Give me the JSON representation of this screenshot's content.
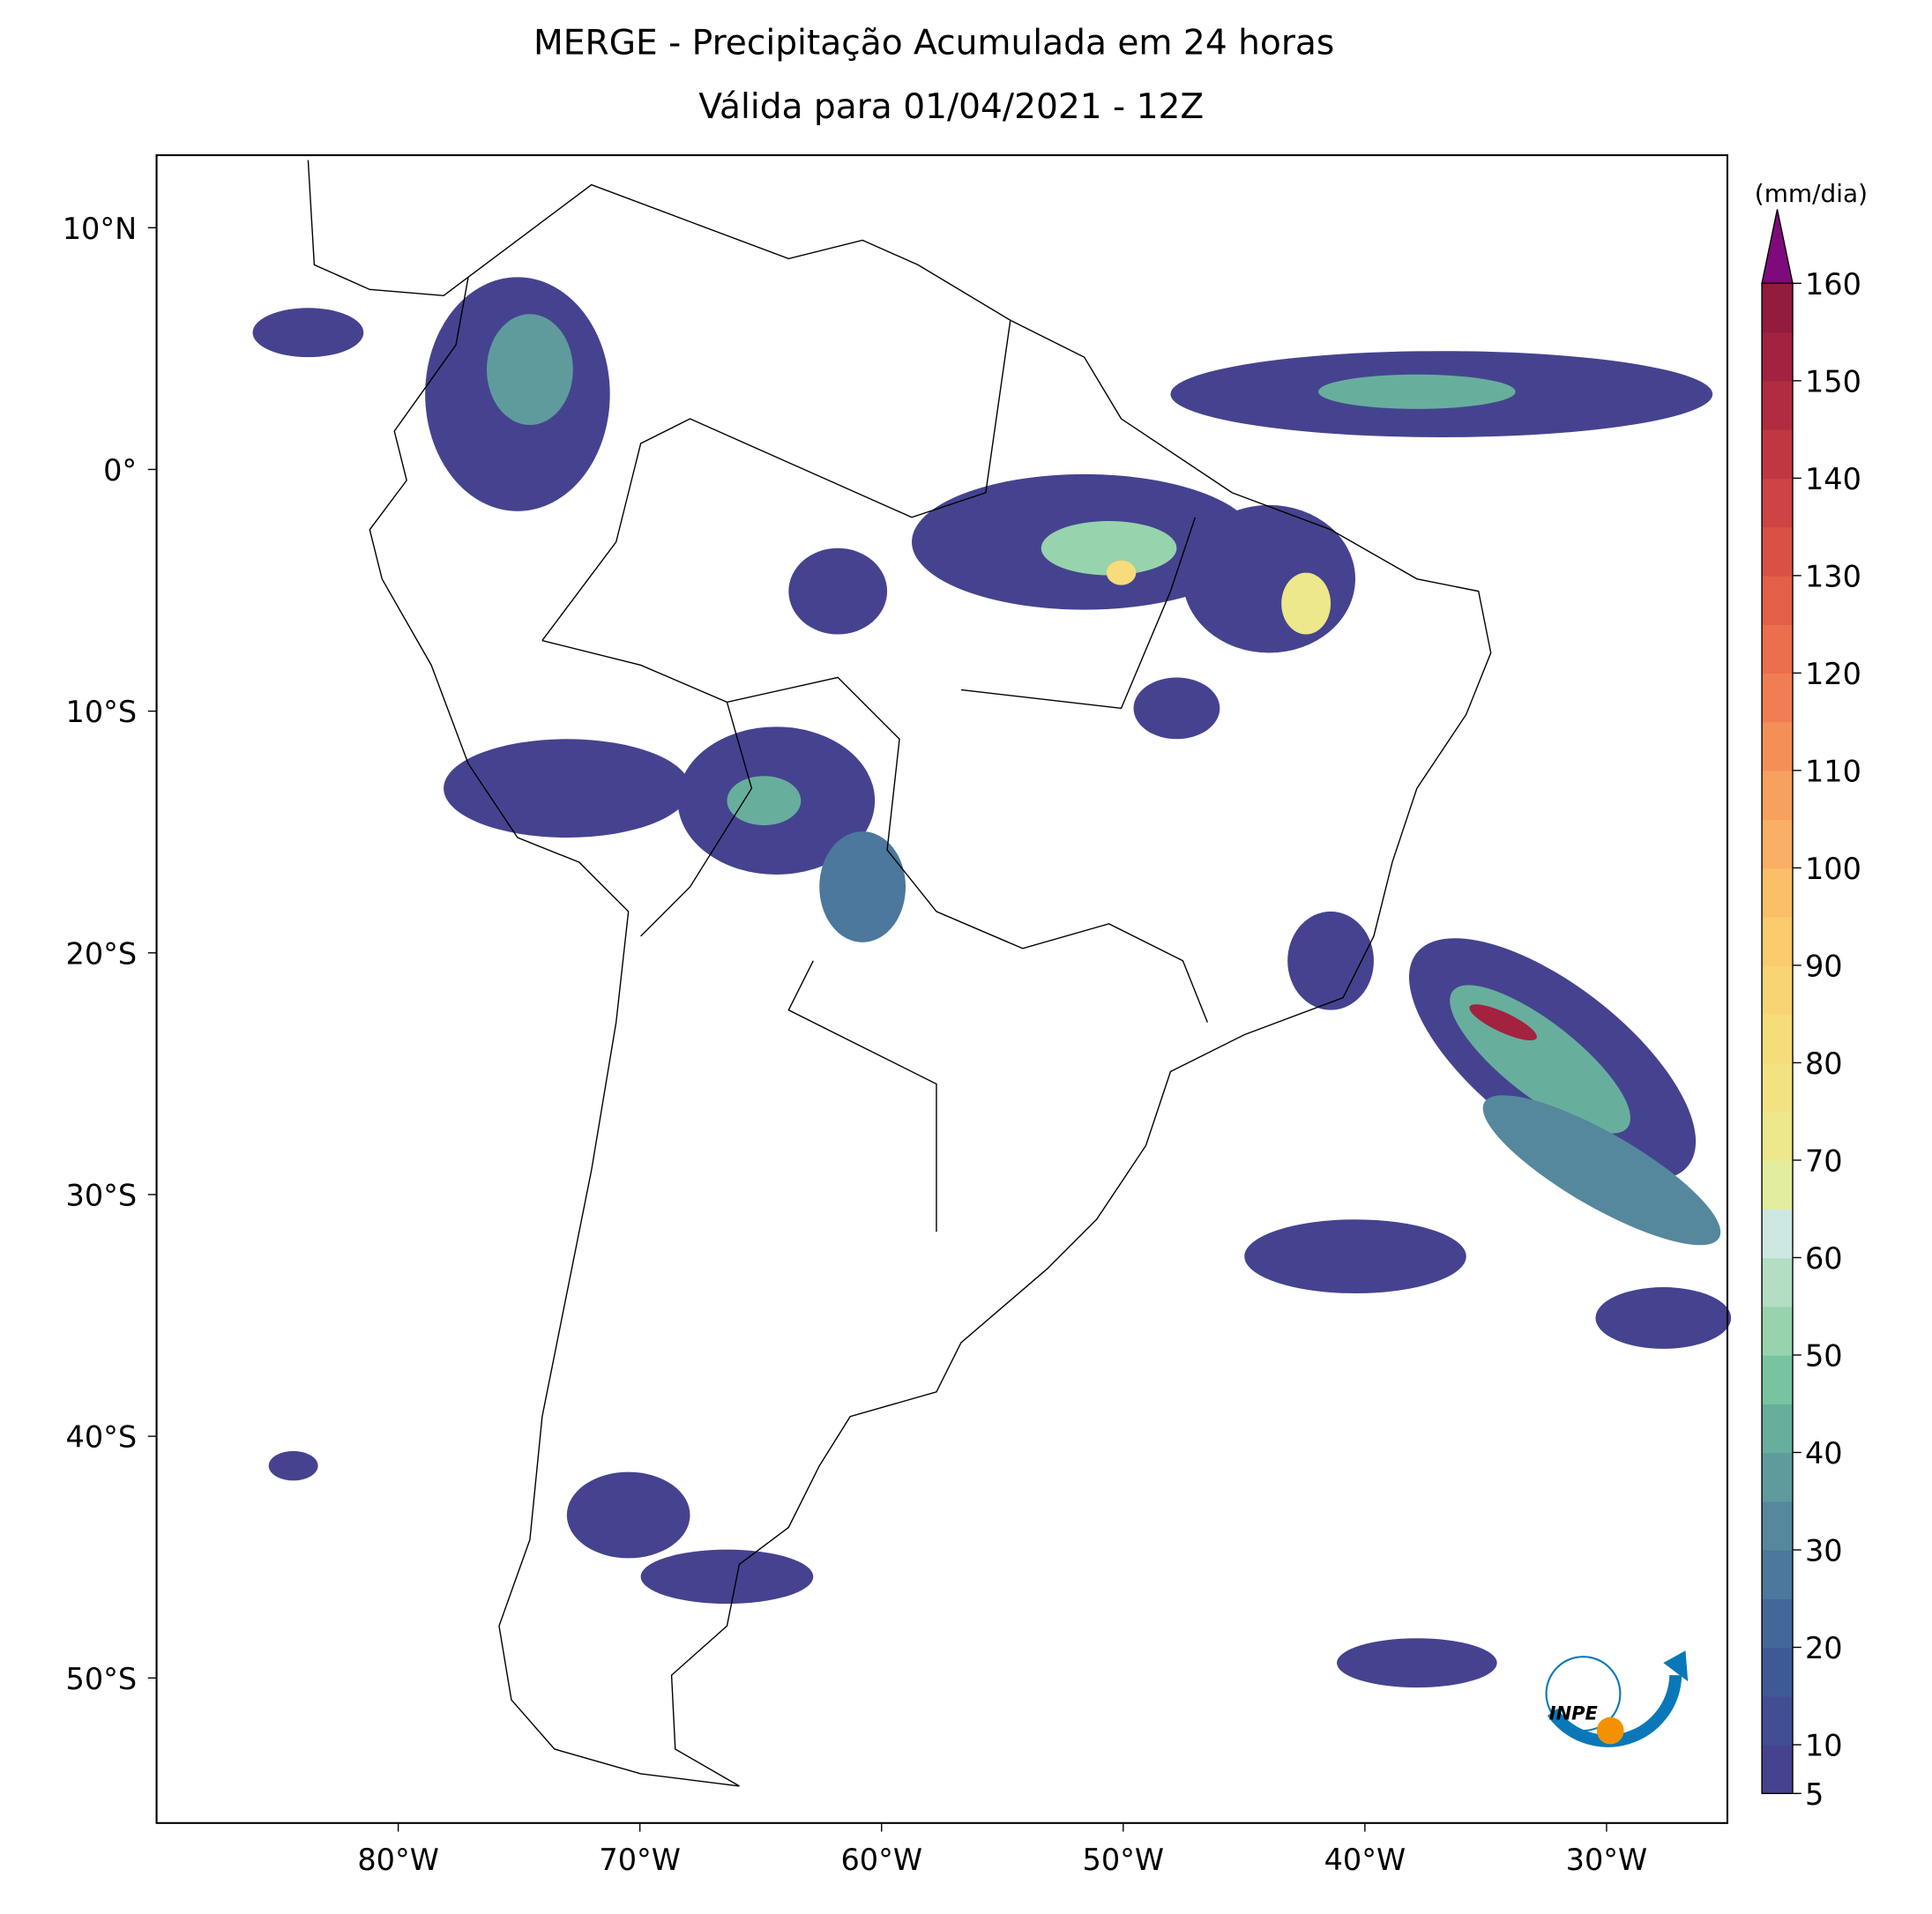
{
  "title": [
    "MERGE - Precipitação Acumulada em 24 horas",
    "Válida para 01/04/2021 - 12Z"
  ],
  "map": {
    "xlim": [
      -90,
      -25
    ],
    "ylim": [
      -56,
      13
    ],
    "xticks": [
      {
        "value": -80,
        "label": "80°W"
      },
      {
        "value": -70,
        "label": "70°W"
      },
      {
        "value": -60,
        "label": "60°W"
      },
      {
        "value": -50,
        "label": "50°W"
      },
      {
        "value": -40,
        "label": "40°W"
      },
      {
        "value": -30,
        "label": "30°W"
      }
    ],
    "yticks": [
      {
        "value": 10,
        "label": "10°N"
      },
      {
        "value": 0,
        "label": "0°"
      },
      {
        "value": -10,
        "label": "10°S"
      },
      {
        "value": -20,
        "label": "20°S"
      },
      {
        "value": -30,
        "label": "30°S"
      },
      {
        "value": -40,
        "label": "40°S"
      },
      {
        "value": -50,
        "label": "50°S"
      }
    ]
  },
  "colorbar": {
    "unit": "(mm/dia)",
    "lim": [
      5,
      160
    ],
    "levels": [
      5,
      10,
      15,
      20,
      25,
      30,
      35,
      40,
      45,
      50,
      55,
      60,
      65,
      70,
      75,
      80,
      85,
      90,
      95,
      100,
      105,
      110,
      115,
      120,
      125,
      130,
      135,
      140,
      145,
      150,
      155,
      160
    ],
    "colors": [
      "#45438f",
      "#414e93",
      "#3e5a96",
      "#42689a",
      "#4b789c",
      "#55889d",
      "#5f9b9d",
      "#68ae9d",
      "#78c4a0",
      "#97d3ad",
      "#b3dec3",
      "#cde8e2",
      "#e3eda0",
      "#ece88b",
      "#f2e281",
      "#f6dc7b",
      "#f9d475",
      "#fbcb6e",
      "#fbbe69",
      "#fab064",
      "#f8a05e",
      "#f58f58",
      "#f17e52",
      "#ec6e4d",
      "#e45f48",
      "#da5045",
      "#ce4343",
      "#c13741",
      "#b22c40",
      "#a2223f",
      "#921b3e"
    ],
    "extend_color": "#7e0a7c",
    "ticks": [
      5,
      10,
      20,
      30,
      40,
      50,
      60,
      70,
      80,
      90,
      100,
      110,
      120,
      130,
      140,
      150,
      160
    ]
  },
  "logo_text": "INPE"
}
